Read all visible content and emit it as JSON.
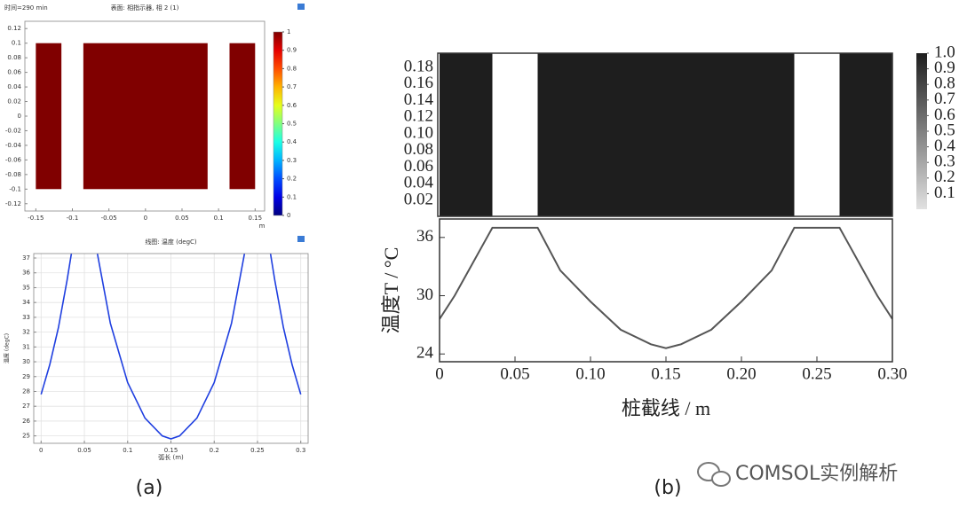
{
  "chart_data": [
    {
      "type": "heatmap",
      "annotation": "时间=290 min",
      "title": "表面: 相指示器, 相 2 (1)",
      "x_unit": "m",
      "colormap": "jet",
      "clim": [
        0,
        1
      ],
      "regions": [
        {
          "x": [
            -0.15,
            -0.115
          ],
          "y": [
            -0.1,
            0.1
          ],
          "value": 1
        },
        {
          "x": [
            -0.085,
            0.085
          ],
          "y": [
            -0.1,
            0.1
          ],
          "value": 1
        },
        {
          "x": [
            0.115,
            0.15
          ],
          "y": [
            -0.1,
            0.1
          ],
          "value": 1
        }
      ],
      "xlim": [
        -0.165,
        0.163
      ],
      "ylim": [
        -0.13,
        0.13
      ],
      "xticks": [
        -0.15,
        -0.1,
        -0.05,
        0,
        0.05,
        0.1,
        0.15
      ],
      "yticks": [
        -0.12,
        -0.1,
        -0.08,
        -0.06,
        -0.04,
        -0.02,
        0,
        0.02,
        0.04,
        0.06,
        0.08,
        0.1,
        0.12
      ],
      "colorbar_ticks": [
        0,
        0.1,
        0.2,
        0.3,
        0.4,
        0.5,
        0.6,
        0.7,
        0.8,
        0.9,
        1
      ]
    },
    {
      "type": "line",
      "title": "线图: 温度 (degC)",
      "xlabel": "弧长 (m)",
      "ylabel": "温度 (degC)",
      "color": "#1f3fe0",
      "grid": true,
      "x": [
        0,
        0.01,
        0.02,
        0.03,
        0.035,
        0.05,
        0.065,
        0.08,
        0.1,
        0.12,
        0.14,
        0.15,
        0.16,
        0.18,
        0.2,
        0.22,
        0.235,
        0.25,
        0.265,
        0.27,
        0.28,
        0.29,
        0.3
      ],
      "values": [
        27.8,
        29.8,
        32.3,
        35.5,
        37.3,
        null,
        37.3,
        32.6,
        28.6,
        26.2,
        25.0,
        24.8,
        25.0,
        26.2,
        28.6,
        32.6,
        37.3,
        null,
        37.3,
        35.5,
        32.3,
        29.8,
        27.8
      ],
      "xlim": [
        -0.0085,
        0.3085
      ],
      "ylim": [
        24.5,
        37.3
      ],
      "xticks": [
        0,
        0.05,
        0.1,
        0.15,
        0.2,
        0.25,
        0.3
      ],
      "yticks": [
        25,
        26,
        27,
        28,
        29,
        30,
        31,
        32,
        33,
        34,
        35,
        36,
        37
      ]
    },
    {
      "type": "heatmap",
      "colormap": "gray",
      "clim": [
        0,
        1
      ],
      "regions": [
        {
          "x": [
            0,
            0.035
          ],
          "y": [
            0,
            0.2
          ],
          "value": 1
        },
        {
          "x": [
            0.065,
            0.235
          ],
          "y": [
            0,
            0.2
          ],
          "value": 1
        },
        {
          "x": [
            0.265,
            0.3
          ],
          "y": [
            0,
            0.2
          ],
          "value": 1
        }
      ],
      "xlim": [
        0,
        0.3
      ],
      "ylim": [
        0.001,
        0.197
      ],
      "yticks": [
        0.02,
        0.04,
        0.06,
        0.08,
        {
          "value": 0.1,
          "label": "0.10"
        },
        0.12,
        0.14,
        0.16,
        0.18
      ],
      "colorbar_ticks": [
        0.1,
        0.2,
        0.3,
        0.4,
        0.5,
        0.6,
        0.7,
        0.8,
        0.9,
        {
          "value": 1,
          "label": "1.0"
        }
      ]
    },
    {
      "type": "line",
      "xlabel": "桩截线 / m",
      "ylabel": "温度T / °C",
      "color": "#555555",
      "grid": false,
      "x": [
        0,
        0.01,
        0.02,
        0.03,
        0.035,
        0.05,
        0.065,
        0.08,
        0.1,
        0.12,
        0.14,
        0.15,
        0.16,
        0.18,
        0.2,
        0.22,
        0.235,
        0.25,
        0.265,
        0.27,
        0.28,
        0.29,
        0.3
      ],
      "values": [
        27.6,
        30.0,
        32.8,
        35.6,
        37.0,
        37.0,
        37.0,
        32.6,
        29.4,
        26.5,
        25.0,
        24.6,
        25.0,
        26.5,
        29.4,
        32.6,
        37.0,
        37.0,
        37.0,
        35.6,
        32.8,
        30.0,
        27.6
      ],
      "xlim": [
        0,
        0.3
      ],
      "ylim": [
        23.2,
        37.9
      ],
      "xticks": [
        0,
        0.05,
        {
          "value": 0.1,
          "label": "0.10"
        },
        0.15,
        {
          "value": 0.2,
          "label": "0.20"
        },
        0.25,
        {
          "value": 0.3,
          "label": "0.30"
        }
      ],
      "yticks": [
        24,
        30,
        36
      ]
    }
  ],
  "captions": [
    "(a)",
    "(b)"
  ],
  "watermark": "COMSOL实例解析"
}
